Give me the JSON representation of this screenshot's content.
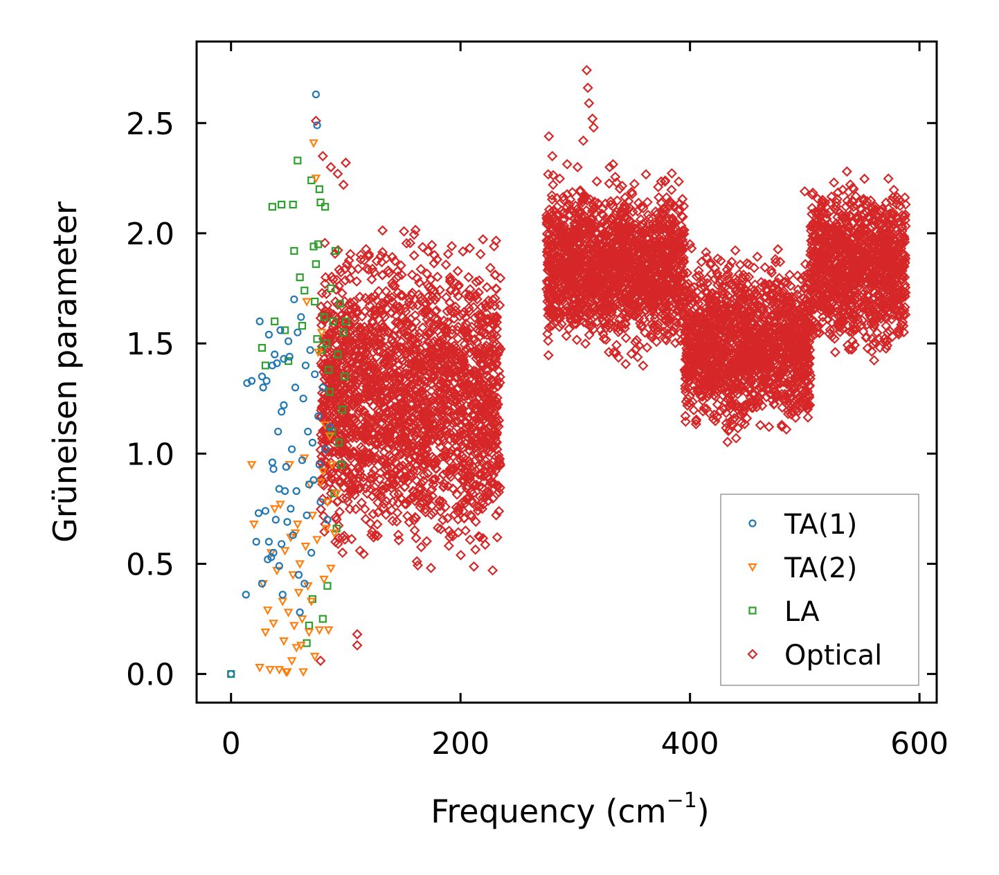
{
  "chart_data": {
    "type": "scatter",
    "title": "",
    "xlabel": "Frequency (cm",
    "xlabel_sup": "−1",
    "xlabel_end": ")",
    "ylabel": "Grüneisen parameter",
    "xlim": [
      -30,
      615
    ],
    "ylim": [
      -0.13,
      2.87
    ],
    "xticks": [
      0,
      200,
      400,
      600
    ],
    "xtick_labels": [
      "0",
      "200",
      "400",
      "600"
    ],
    "yticks": [
      0.0,
      0.5,
      1.0,
      1.5,
      2.0,
      2.5
    ],
    "ytick_labels": [
      "0.0",
      "0.5",
      "1.0",
      "1.5",
      "2.0",
      "2.5"
    ],
    "grid": false,
    "legend_position": "bottom-right",
    "series": [
      {
        "name": "TA(1)",
        "marker": "circle",
        "color": "#1f77b4",
        "points": [
          [
            0,
            0.0
          ],
          [
            13,
            0.36
          ],
          [
            14,
            1.32
          ],
          [
            18,
            1.33
          ],
          [
            22,
            0.6
          ],
          [
            24,
            0.73
          ],
          [
            25,
            1.6
          ],
          [
            27,
            1.35
          ],
          [
            27,
            0.41
          ],
          [
            28,
            1.3
          ],
          [
            30,
            0.74
          ],
          [
            31,
            1.33
          ],
          [
            32,
            0.52
          ],
          [
            33,
            0.6
          ],
          [
            33,
            1.54
          ],
          [
            35,
            0.53
          ],
          [
            36,
            0.96
          ],
          [
            36,
            1.4
          ],
          [
            37,
            0.93
          ],
          [
            37,
            0.55
          ],
          [
            38,
            1.45
          ],
          [
            39,
            0.7
          ],
          [
            40,
            1.41
          ],
          [
            41,
            1.1
          ],
          [
            42,
            0.49
          ],
          [
            42,
            0.84
          ],
          [
            43,
            1.56
          ],
          [
            44,
            1.19
          ],
          [
            44,
            0.59
          ],
          [
            45,
            0.36
          ],
          [
            46,
            1.22
          ],
          [
            46,
            1.43
          ],
          [
            47,
            0.83
          ],
          [
            48,
            0.94
          ],
          [
            49,
            0.69
          ],
          [
            50,
            1.51
          ],
          [
            51,
            1.44
          ],
          [
            52,
            0.75
          ],
          [
            53,
            1.02
          ],
          [
            54,
            0.63
          ],
          [
            55,
            1.7
          ],
          [
            56,
            1.3
          ],
          [
            57,
            0.83
          ],
          [
            58,
            1.55
          ],
          [
            59,
            0.45
          ],
          [
            60,
            0.28
          ],
          [
            61,
            1.62
          ],
          [
            62,
            0.97
          ],
          [
            63,
            1.25
          ],
          [
            64,
            0.41
          ],
          [
            65,
            1.4
          ],
          [
            66,
            0.72
          ],
          [
            67,
            1.1
          ],
          [
            68,
            0.86
          ],
          [
            69,
            1.47
          ],
          [
            70,
            0.55
          ],
          [
            71,
            1.05
          ],
          [
            72,
            0.88
          ],
          [
            73,
            1.36
          ],
          [
            74,
            2.63
          ],
          [
            75,
            2.49
          ],
          [
            76,
            1.17
          ],
          [
            77,
            0.95
          ],
          [
            78,
            0.78
          ],
          [
            80,
            1.3
          ],
          [
            82,
            1.02
          ],
          [
            84,
            0.7
          ],
          [
            86,
            1.12
          ]
        ]
      },
      {
        "name": "TA(2)",
        "marker": "triangle-down",
        "color": "#ff7f0e",
        "points": [
          [
            18,
            0.95
          ],
          [
            20,
            0.68
          ],
          [
            25,
            0.03
          ],
          [
            28,
            0.41
          ],
          [
            30,
            0.19
          ],
          [
            32,
            0.29
          ],
          [
            34,
            0.02
          ],
          [
            35,
            0.55
          ],
          [
            37,
            0.23
          ],
          [
            38,
            0.75
          ],
          [
            40,
            0.47
          ],
          [
            42,
            0.02
          ],
          [
            43,
            0.77
          ],
          [
            45,
            0.33
          ],
          [
            46,
            0.15
          ],
          [
            47,
            0.56
          ],
          [
            48,
            0.01
          ],
          [
            49,
            0.01
          ],
          [
            50,
            0.28
          ],
          [
            51,
            0.95
          ],
          [
            52,
            0.62
          ],
          [
            53,
            0.06
          ],
          [
            54,
            0.45
          ],
          [
            55,
            0.22
          ],
          [
            56,
            0.64
          ],
          [
            57,
            0.12
          ],
          [
            58,
            0.68
          ],
          [
            59,
            0.37
          ],
          [
            60,
            0.5
          ],
          [
            61,
            0.13
          ],
          [
            62,
            0.25
          ],
          [
            63,
            0.01
          ],
          [
            64,
            0.98
          ],
          [
            65,
            0.58
          ],
          [
            66,
            1.69
          ],
          [
            67,
            0.4
          ],
          [
            68,
            0.19
          ],
          [
            69,
            0.86
          ],
          [
            70,
            0.33
          ],
          [
            71,
            0.72
          ],
          [
            72,
            2.41
          ],
          [
            73,
            0.08
          ],
          [
            74,
            2.25
          ],
          [
            75,
            0.61
          ],
          [
            76,
            1.46
          ],
          [
            77,
            0.2
          ],
          [
            78,
            0.87
          ],
          [
            79,
            1.55
          ],
          [
            80,
            0.92
          ],
          [
            81,
            0.43
          ],
          [
            82,
            1.13
          ],
          [
            83,
            0.66
          ],
          [
            84,
            0.78
          ],
          [
            85,
            0.2
          ],
          [
            86,
            1.08
          ],
          [
            87,
            0.48
          ],
          [
            88,
            0.95
          ],
          [
            90,
            0.64
          ],
          [
            92,
            0.82
          ]
        ]
      },
      {
        "name": "LA",
        "marker": "square",
        "color": "#2ca02c",
        "points": [
          [
            0,
            0.0
          ],
          [
            27,
            1.48
          ],
          [
            30,
            1.4
          ],
          [
            36,
            2.12
          ],
          [
            38,
            1.6
          ],
          [
            44,
            2.13
          ],
          [
            47,
            1.56
          ],
          [
            50,
            1.42
          ],
          [
            54,
            2.13
          ],
          [
            55,
            1.92
          ],
          [
            58,
            2.33
          ],
          [
            60,
            1.8
          ],
          [
            62,
            1.58
          ],
          [
            64,
            1.74
          ],
          [
            66,
            0.14
          ],
          [
            68,
            0.22
          ],
          [
            70,
            2.24
          ],
          [
            71,
            0.34
          ],
          [
            72,
            1.94
          ],
          [
            73,
            1.69
          ],
          [
            74,
            1.86
          ],
          [
            75,
            1.52
          ],
          [
            76,
            1.95
          ],
          [
            77,
            2.2
          ],
          [
            78,
            2.14
          ],
          [
            79,
            1.47
          ],
          [
            80,
            0.25
          ],
          [
            81,
            1.62
          ],
          [
            82,
            2.12
          ],
          [
            83,
            1.5
          ],
          [
            84,
            0.4
          ],
          [
            85,
            1.38
          ],
          [
            86,
            1.28
          ],
          [
            87,
            1.75
          ],
          [
            88,
            1.1
          ],
          [
            89,
            1.6
          ],
          [
            90,
            0.82
          ],
          [
            91,
            1.92
          ],
          [
            92,
            0.66
          ],
          [
            93,
            1.45
          ],
          [
            94,
            1.05
          ],
          [
            95,
            1.68
          ],
          [
            96,
            0.95
          ],
          [
            97,
            1.2
          ],
          [
            98,
            1.55
          ],
          [
            99,
            1.35
          ],
          [
            100,
            1.6
          ]
        ]
      },
      {
        "name": "Optical",
        "marker": "diamond",
        "color": "#d62728",
        "regions": [
          {
            "x_range": [
              78,
              235
            ],
            "y_center": 1.25,
            "y_spread": 0.55
          },
          {
            "x_range": [
              275,
              395
            ],
            "y_center": 1.85,
            "y_spread": 0.3
          },
          {
            "x_range": [
              395,
              505
            ],
            "y_center": 1.5,
            "y_spread": 0.3
          },
          {
            "x_range": [
              505,
              588
            ],
            "y_center": 1.85,
            "y_spread": 0.3
          }
        ],
        "highlights": [
          [
            74,
            2.51
          ],
          [
            80,
            2.35
          ],
          [
            87,
            2.3
          ],
          [
            93,
            2.27
          ],
          [
            98,
            2.22
          ],
          [
            100,
            2.32
          ],
          [
            302,
            2.3
          ],
          [
            307,
            2.42
          ],
          [
            310,
            2.74
          ],
          [
            311,
            2.66
          ],
          [
            312,
            2.59
          ],
          [
            315,
            2.52
          ],
          [
            316,
            2.48
          ],
          [
            277,
            2.44
          ],
          [
            280,
            2.35
          ],
          [
            500,
            2.19
          ],
          [
            545,
            2.07
          ],
          [
            553,
            2.05
          ],
          [
            410,
            1.87
          ],
          [
            400,
            1.95
          ],
          [
            330,
            2.3
          ],
          [
            336,
            2.23
          ],
          [
            480,
            1.13
          ],
          [
            484,
            1.11
          ],
          [
            110,
            0.13
          ],
          [
            110,
            0.18
          ],
          [
            78,
            0.06
          ],
          [
            228,
            0.47
          ],
          [
            232,
            0.62
          ],
          [
            214,
            1.23
          ],
          [
            220,
            1.06
          ],
          [
            586,
            1.58
          ]
        ]
      }
    ]
  }
}
